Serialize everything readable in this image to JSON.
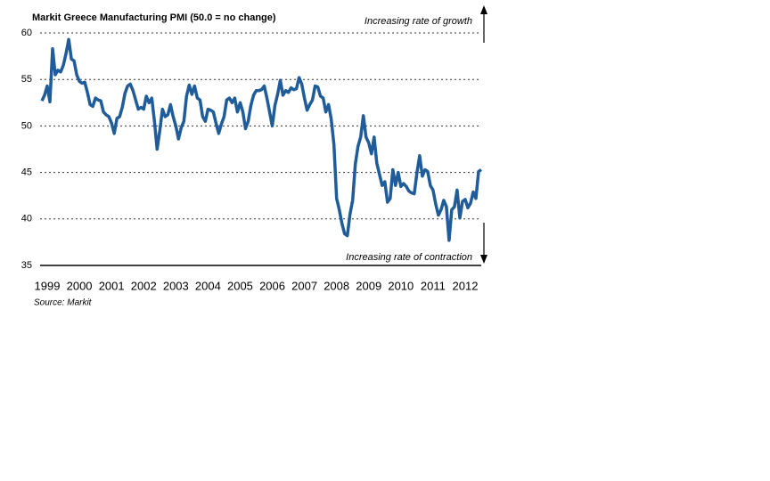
{
  "chart_data": {
    "type": "line",
    "title": "Markit Greece Manufacturing PMI (50.0 = no change)",
    "annotations": [
      "Increasing rate of growth",
      "Increasing rate of contraction"
    ],
    "source": "Source: Markit",
    "categories": [
      null,
      null,
      "1999",
      null,
      null,
      null,
      null,
      null,
      null,
      null,
      null,
      null,
      null,
      null,
      "2000",
      null,
      null,
      null,
      null,
      null,
      null,
      null,
      null,
      null,
      null,
      null,
      "2001",
      null,
      null,
      null,
      null,
      null,
      null,
      null,
      null,
      null,
      null,
      null,
      "2002",
      null,
      null,
      null,
      null,
      null,
      null,
      null,
      null,
      null,
      null,
      null,
      "2003",
      null,
      null,
      null,
      null,
      null,
      null,
      null,
      null,
      null,
      null,
      null,
      "2004",
      null,
      null,
      null,
      null,
      null,
      null,
      null,
      null,
      null,
      null,
      null,
      "2005",
      null,
      null,
      null,
      null,
      null,
      null,
      null,
      null,
      null,
      null,
      null,
      "2006",
      null,
      null,
      null,
      null,
      null,
      null,
      null,
      null,
      null,
      null,
      null,
      "2007",
      null,
      null,
      null,
      null,
      null,
      null,
      null,
      null,
      null,
      null,
      null,
      "2008",
      null,
      null,
      null,
      null,
      null,
      null,
      null,
      null,
      null,
      null,
      null,
      "2009",
      null,
      null,
      null,
      null,
      null,
      null,
      null,
      null,
      null,
      null,
      null,
      "2010",
      null,
      null,
      null,
      null,
      null,
      null,
      null,
      null,
      null,
      null,
      null,
      "2011",
      null,
      null,
      null,
      null,
      null,
      null,
      null,
      null,
      null,
      null,
      null,
      "2012",
      null,
      null,
      null,
      null,
      null,
      null
    ],
    "values": [
      52.7,
      53.3,
      54.3,
      52.6,
      58.3,
      55.5,
      56.0,
      55.8,
      56.5,
      57.8,
      59.3,
      57.2,
      57.0,
      55.5,
      54.8,
      54.6,
      54.7,
      53.6,
      52.3,
      52.1,
      53.0,
      52.8,
      52.7,
      51.5,
      51.2,
      51.0,
      50.3,
      49.2,
      50.8,
      51.0,
      52.0,
      53.5,
      54.3,
      54.5,
      53.8,
      52.8,
      51.8,
      52.0,
      51.8,
      53.2,
      52.5,
      53.0,
      50.5,
      47.5,
      49.5,
      51.8,
      51.0,
      51.2,
      52.3,
      51.0,
      50.0,
      48.6,
      49.8,
      50.5,
      53.2,
      54.4,
      53.4,
      54.3,
      53.0,
      52.8,
      51.0,
      50.5,
      51.8,
      51.7,
      51.5,
      50.3,
      49.2,
      50.2,
      51.0,
      52.8,
      53.0,
      52.5,
      53.0,
      51.5,
      52.5,
      51.5,
      49.7,
      50.5,
      52.2,
      53.3,
      53.8,
      53.8,
      53.9,
      54.3,
      53.0,
      51.5,
      50.0,
      52.2,
      53.4,
      54.9,
      53.3,
      53.8,
      53.6,
      54.1,
      53.9,
      54.0,
      55.2,
      54.5,
      53.0,
      51.7,
      52.3,
      52.8,
      54.3,
      54.2,
      53.2,
      53.0,
      51.5,
      52.3,
      50.7,
      48.0,
      42.2,
      41.0,
      39.5,
      38.4,
      38.2,
      40.5,
      42.0,
      45.9,
      47.8,
      48.8,
      51.1,
      48.8,
      48.2,
      47.0,
      48.8,
      46.0,
      44.8,
      43.6,
      44.0,
      41.8,
      42.2,
      45.3,
      43.6,
      45.0,
      43.5,
      43.8,
      43.5,
      43.0,
      42.8,
      42.7,
      45.0,
      46.8,
      44.6,
      45.3,
      45.1,
      43.6,
      43.1,
      41.6,
      40.4,
      41.0,
      42.0,
      41.3,
      37.7,
      41.0,
      41.3,
      43.1,
      40.1,
      41.9,
      42.1,
      41.2,
      41.7,
      42.9,
      42.2,
      45.1,
      45.3
    ],
    "color": "#1f5c99",
    "ylim": [
      35,
      60
    ],
    "yticks": [
      35,
      40,
      45,
      50,
      55,
      60
    ],
    "grid": true
  }
}
